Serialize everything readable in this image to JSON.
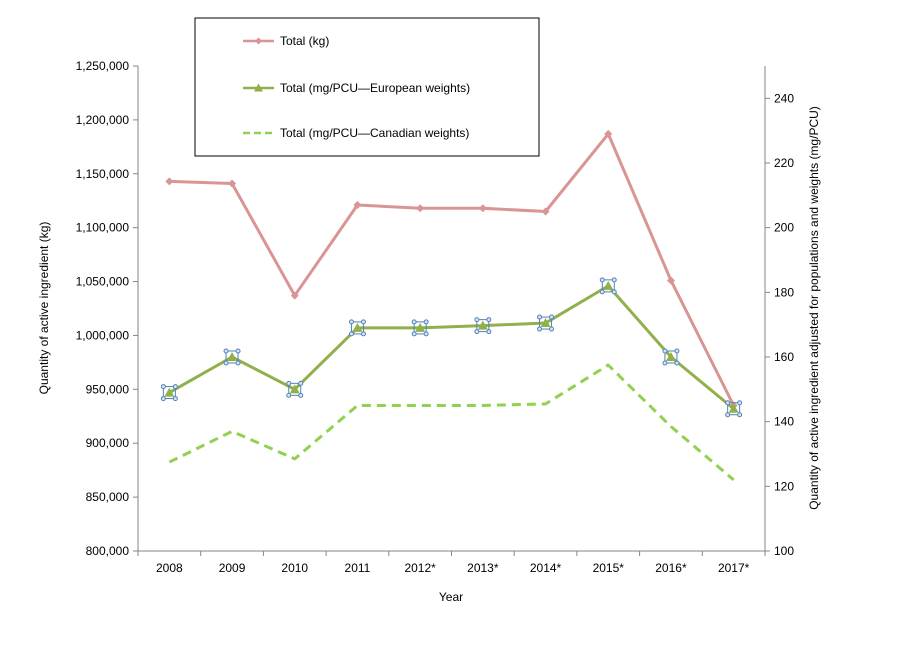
{
  "chart_data": {
    "type": "line",
    "categories": [
      "2008",
      "2009",
      "2010",
      "2011",
      "2012*",
      "2013*",
      "2014*",
      "2015*",
      "2016*",
      "2017*"
    ],
    "xlabel": "Year",
    "ylabel_left": "Quantity of active ingredient  (kg)",
    "ylabel_right": "Quantity of active ingredient adjusted for populations and weights (mg/PCU)",
    "ylim_left": [
      800000,
      1250000
    ],
    "ylim_right": [
      100,
      250
    ],
    "yticks_left": [
      "800,000",
      "850,000",
      "900,000",
      "950,000",
      "1,000,000",
      "1,050,000",
      "1,100,000",
      "1,150,000",
      "1,200,000",
      "1,250,000"
    ],
    "yticks_right": [
      "100",
      "120",
      "140",
      "160",
      "180",
      "200",
      "220",
      "240"
    ],
    "grid": false,
    "legend_position": "top-left",
    "series": [
      {
        "name": "Total (kg)",
        "axis": "left",
        "style": "solid",
        "marker": "diamond",
        "color": "#d99594",
        "values": [
          1143000,
          1141000,
          1037000,
          1121000,
          1118000,
          1118000,
          1115000,
          1187000,
          1051000,
          935000
        ]
      },
      {
        "name": "Total (mg/PCU—European  weights)",
        "axis": "right",
        "style": "solid",
        "marker": "triangle",
        "color": "#8fb04b",
        "values": [
          149,
          160,
          150,
          169,
          169,
          169.7,
          170.5,
          182,
          160,
          144
        ]
      },
      {
        "name": "Total (mg/PCU—Canadian  weights)",
        "axis": "right",
        "style": "dashed",
        "marker": "none",
        "color": "#92d050",
        "values": [
          127.5,
          137,
          128.5,
          145,
          145,
          145,
          145.5,
          157.5,
          138.5,
          122
        ]
      }
    ]
  }
}
